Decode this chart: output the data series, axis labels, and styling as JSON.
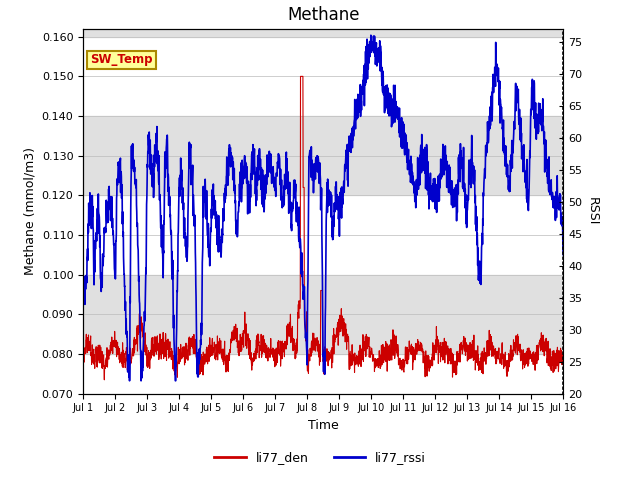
{
  "title": "Methane",
  "xlabel": "Time",
  "ylabel_left": "Methane (mmol/m3)",
  "ylabel_right": "RSSI",
  "ylim_left": [
    0.07,
    0.162
  ],
  "ylim_right": [
    20,
    77
  ],
  "yticks_left": [
    0.07,
    0.08,
    0.09,
    0.1,
    0.11,
    0.12,
    0.13,
    0.14,
    0.15,
    0.16
  ],
  "yticks_right": [
    20,
    25,
    30,
    35,
    40,
    45,
    50,
    55,
    60,
    65,
    70,
    75
  ],
  "xtick_labels": [
    "Jul 1",
    "Jul 2",
    "Jul 3",
    "Jul 4",
    "Jul 5",
    "Jul 6",
    "Jul 7",
    "Jul 8",
    "Jul 9",
    "Jul 10",
    "Jul 11",
    "Jul 12",
    "Jul 13",
    "Jul 14",
    "Jul 15",
    "Jul 16"
  ],
  "color_red": "#cc0000",
  "color_blue": "#0000cc",
  "legend_label_red": "li77_den",
  "legend_label_blue": "li77_rssi",
  "annotation_box_text": "SW_Temp",
  "annotation_box_color": "#ffff99",
  "annotation_box_edgecolor": "#aa8800",
  "annotation_text_color": "#cc0000",
  "bg_band_color": "#e0e0e0",
  "grid_color": "#bbbbbb",
  "title_fontsize": 12,
  "axis_label_fontsize": 9,
  "tick_fontsize": 8
}
